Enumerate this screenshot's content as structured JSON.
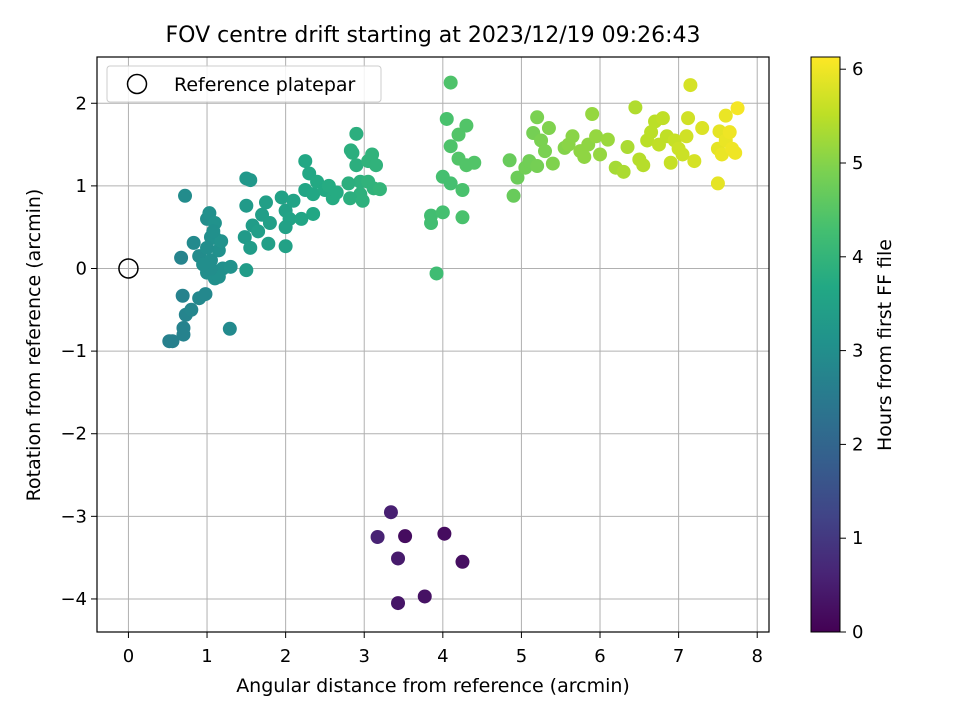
{
  "chart_data": {
    "type": "scatter",
    "title": "FOV centre drift starting at 2023/12/19 09:26:43",
    "xlabel": "Angular distance from reference (arcmin)",
    "ylabel": "Rotation from reference (arcmin)",
    "xlim": [
      -0.4,
      8.15
    ],
    "ylim": [
      -4.4,
      2.56
    ],
    "xticks": [
      0,
      1,
      2,
      3,
      4,
      5,
      6,
      7,
      8
    ],
    "yticks": [
      2,
      1,
      0,
      -1,
      -2,
      -3,
      -4
    ],
    "grid": true,
    "legend": {
      "position": "top-left",
      "entries": [
        "Reference platepar"
      ]
    },
    "reference_point": {
      "x": 0,
      "y": 0
    },
    "colorbar": {
      "label": "Hours from first FF file",
      "range": [
        0,
        6.13
      ],
      "ticks": [
        0,
        1,
        2,
        3,
        4,
        5,
        6
      ],
      "colormap": "viridis"
    },
    "series": [
      {
        "values": [
          [
            3.34,
            -2.95,
            0.55
          ],
          [
            3.17,
            -3.25,
            0.6
          ],
          [
            3.52,
            -3.24,
            0.2
          ],
          [
            3.43,
            -3.51,
            0.45
          ],
          [
            4.02,
            -3.21,
            0.2
          ],
          [
            4.25,
            -3.55,
            0.25
          ],
          [
            3.77,
            -3.97,
            0.3
          ],
          [
            3.43,
            -4.05,
            0.35
          ],
          [
            0.52,
            -0.88,
            2.65
          ],
          [
            0.56,
            -0.88,
            2.65
          ],
          [
            0.7,
            -0.8,
            2.7
          ],
          [
            0.7,
            -0.72,
            2.7
          ],
          [
            0.73,
            -0.56,
            2.75
          ],
          [
            0.8,
            -0.5,
            2.8
          ],
          [
            0.69,
            -0.33,
            2.7
          ],
          [
            0.9,
            -0.36,
            2.85
          ],
          [
            0.98,
            -0.31,
            2.85
          ],
          [
            0.67,
            0.13,
            2.75
          ],
          [
            0.83,
            0.31,
            2.9
          ],
          [
            0.9,
            0.15,
            2.95
          ],
          [
            0.97,
            0.05,
            3.0
          ],
          [
            1.0,
            -0.05,
            3.0
          ],
          [
            1.05,
            0.1,
            3.0
          ],
          [
            1.1,
            -0.12,
            3.05
          ],
          [
            1.15,
            0.22,
            3.05
          ],
          [
            1.05,
            0.38,
            3.0
          ],
          [
            1.0,
            0.6,
            3.0
          ],
          [
            1.03,
            0.67,
            3.05
          ],
          [
            1.1,
            0.55,
            3.1
          ],
          [
            1.1,
            0.37,
            3.05
          ],
          [
            1.18,
            0.33,
            3.1
          ],
          [
            1.2,
            0.0,
            3.05
          ],
          [
            1.15,
            -0.1,
            3.05
          ],
          [
            1.05,
            0.0,
            3.0
          ],
          [
            0.95,
            0.05,
            3.0
          ],
          [
            1.0,
            0.25,
            3.0
          ],
          [
            1.08,
            0.45,
            3.05
          ],
          [
            1.3,
            0.02,
            3.1
          ],
          [
            1.29,
            -0.73,
            2.9
          ],
          [
            0.72,
            0.88,
            2.95
          ],
          [
            1.5,
            1.09,
            3.25
          ],
          [
            1.55,
            1.07,
            3.25
          ],
          [
            1.5,
            0.76,
            3.3
          ],
          [
            1.58,
            0.52,
            3.35
          ],
          [
            1.48,
            0.38,
            3.3
          ],
          [
            1.55,
            0.25,
            3.35
          ],
          [
            1.5,
            -0.02,
            3.35
          ],
          [
            1.65,
            0.45,
            3.4
          ],
          [
            1.7,
            0.65,
            3.4
          ],
          [
            1.75,
            0.8,
            3.45
          ],
          [
            1.8,
            0.55,
            3.45
          ],
          [
            1.78,
            0.3,
            3.45
          ],
          [
            1.95,
            0.86,
            3.5
          ],
          [
            2.0,
            0.7,
            3.5
          ],
          [
            2.05,
            0.6,
            3.55
          ],
          [
            2.1,
            0.82,
            3.55
          ],
          [
            2.0,
            0.5,
            3.5
          ],
          [
            2.0,
            0.27,
            3.5
          ],
          [
            2.25,
            1.3,
            3.65
          ],
          [
            2.3,
            1.15,
            3.65
          ],
          [
            2.25,
            0.95,
            3.6
          ],
          [
            2.35,
            0.9,
            3.65
          ],
          [
            2.35,
            0.66,
            3.65
          ],
          [
            2.2,
            0.6,
            3.6
          ],
          [
            2.4,
            1.05,
            3.7
          ],
          [
            2.5,
            0.95,
            3.7
          ],
          [
            2.55,
            1.0,
            3.75
          ],
          [
            2.6,
            0.85,
            3.75
          ],
          [
            2.65,
            0.92,
            3.75
          ],
          [
            2.85,
            1.4,
            3.85
          ],
          [
            2.83,
            1.43,
            3.85
          ],
          [
            2.9,
            1.63,
            3.85
          ],
          [
            2.9,
            1.25,
            3.85
          ],
          [
            2.95,
            1.05,
            3.9
          ],
          [
            2.95,
            0.9,
            3.9
          ],
          [
            2.82,
            0.85,
            3.85
          ],
          [
            2.98,
            0.82,
            3.9
          ],
          [
            3.05,
            1.3,
            3.95
          ],
          [
            3.1,
            1.38,
            3.95
          ],
          [
            3.15,
            1.25,
            3.95
          ],
          [
            3.05,
            1.05,
            3.95
          ],
          [
            3.12,
            0.97,
            3.95
          ],
          [
            3.2,
            0.96,
            4.0
          ],
          [
            2.8,
            1.03,
            3.85
          ],
          [
            3.85,
            0.64,
            4.25
          ],
          [
            3.85,
            0.55,
            4.25
          ],
          [
            4.0,
            0.68,
            4.3
          ],
          [
            3.92,
            -0.06,
            4.2
          ],
          [
            4.0,
            1.11,
            4.3
          ],
          [
            4.1,
            1.03,
            4.3
          ],
          [
            4.25,
            0.95,
            4.35
          ],
          [
            4.25,
            0.62,
            4.35
          ],
          [
            4.05,
            1.81,
            4.35
          ],
          [
            4.1,
            2.25,
            4.4
          ],
          [
            4.2,
            1.62,
            4.45
          ],
          [
            4.3,
            1.73,
            4.45
          ],
          [
            4.1,
            1.48,
            4.4
          ],
          [
            4.2,
            1.33,
            4.45
          ],
          [
            4.3,
            1.25,
            4.45
          ],
          [
            4.4,
            1.28,
            4.45
          ],
          [
            4.85,
            1.31,
            4.7
          ],
          [
            4.9,
            0.88,
            4.7
          ],
          [
            4.95,
            1.1,
            4.75
          ],
          [
            5.05,
            1.22,
            4.8
          ],
          [
            5.1,
            1.3,
            4.8
          ],
          [
            5.2,
            1.24,
            4.85
          ],
          [
            5.15,
            1.64,
            4.85
          ],
          [
            5.2,
            1.83,
            4.9
          ],
          [
            5.25,
            1.55,
            4.9
          ],
          [
            5.3,
            1.42,
            4.9
          ],
          [
            5.35,
            1.7,
            4.95
          ],
          [
            5.4,
            1.27,
            4.95
          ],
          [
            5.55,
            1.46,
            5.0
          ],
          [
            5.6,
            1.5,
            5.05
          ],
          [
            5.65,
            1.6,
            5.05
          ],
          [
            5.75,
            1.42,
            5.1
          ],
          [
            5.8,
            1.35,
            5.1
          ],
          [
            5.85,
            1.5,
            5.1
          ],
          [
            5.9,
            1.87,
            5.15
          ],
          [
            5.95,
            1.6,
            5.15
          ],
          [
            6.0,
            1.38,
            5.15
          ],
          [
            6.1,
            1.56,
            5.2
          ],
          [
            6.2,
            1.22,
            5.3
          ],
          [
            6.3,
            1.17,
            5.35
          ],
          [
            6.35,
            1.47,
            5.35
          ],
          [
            6.45,
            1.95,
            5.4
          ],
          [
            6.5,
            1.32,
            5.45
          ],
          [
            6.55,
            1.25,
            5.45
          ],
          [
            6.6,
            1.55,
            5.5
          ],
          [
            6.65,
            1.65,
            5.5
          ],
          [
            6.7,
            1.78,
            5.5
          ],
          [
            6.75,
            1.5,
            5.55
          ],
          [
            6.8,
            1.82,
            5.55
          ],
          [
            6.85,
            1.6,
            5.55
          ],
          [
            6.9,
            1.28,
            5.6
          ],
          [
            6.95,
            1.55,
            5.6
          ],
          [
            7.0,
            1.45,
            5.65
          ],
          [
            7.05,
            1.38,
            5.65
          ],
          [
            7.1,
            1.6,
            5.7
          ],
          [
            7.12,
            1.82,
            5.7
          ],
          [
            7.15,
            2.22,
            5.75
          ],
          [
            7.2,
            1.3,
            5.75
          ],
          [
            7.3,
            1.7,
            5.8
          ],
          [
            7.5,
            1.03,
            5.9
          ],
          [
            7.5,
            1.45,
            5.9
          ],
          [
            7.52,
            1.66,
            5.9
          ],
          [
            7.55,
            1.38,
            5.95
          ],
          [
            7.6,
            1.85,
            5.95
          ],
          [
            7.6,
            1.55,
            5.95
          ],
          [
            7.65,
            1.65,
            6.0
          ],
          [
            7.68,
            1.45,
            6.0
          ],
          [
            7.72,
            1.4,
            6.0
          ],
          [
            7.75,
            1.94,
            6.05
          ]
        ]
      }
    ]
  },
  "legend_label": "Reference platepar"
}
